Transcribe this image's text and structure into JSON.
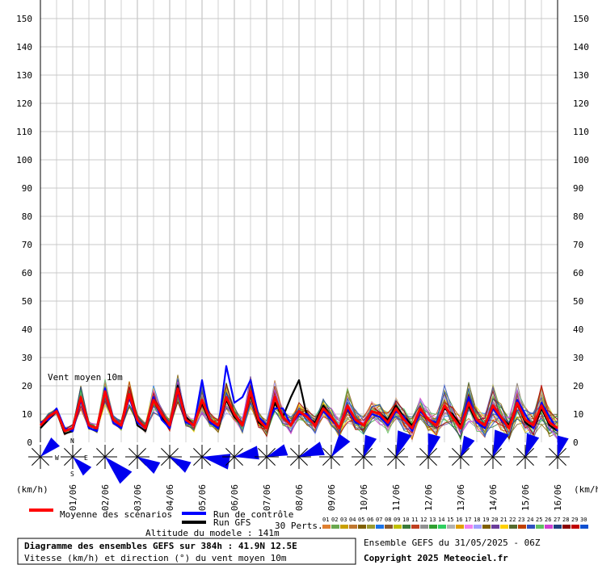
{
  "chart_data": {
    "type": "line",
    "annotation": "Vent moyen 10m",
    "y_unit_left": "(km/h)",
    "y_unit_right": "(km/h)",
    "ylim": [
      0,
      150
    ],
    "yticks": [
      0,
      10,
      20,
      30,
      40,
      50,
      60,
      70,
      80,
      90,
      100,
      110,
      120,
      130,
      140,
      150
    ],
    "date_labels": [
      "01/06",
      "02/06",
      "03/06",
      "04/06",
      "05/06",
      "06/06",
      "07/06",
      "08/06",
      "09/06",
      "10/06",
      "11/06",
      "12/06",
      "13/06",
      "14/06",
      "15/06",
      "16/06"
    ],
    "x_hours": [
      0,
      6,
      12,
      18,
      24,
      30,
      36,
      42,
      48,
      54,
      60,
      66,
      72,
      78,
      84,
      90,
      96,
      102,
      108,
      114,
      120,
      126,
      132,
      138,
      144,
      150,
      156,
      162,
      168,
      174,
      180,
      186,
      192,
      198,
      204,
      210,
      216,
      222,
      228,
      234,
      240,
      246,
      252,
      258,
      264,
      270,
      276,
      282,
      288,
      294,
      300,
      306,
      312,
      318,
      324,
      330,
      336,
      342,
      348,
      354,
      360,
      366,
      372,
      378,
      384
    ],
    "x_range_hours": [
      0,
      384
    ],
    "series": [
      {
        "name": "Moyenne des scénarios",
        "color": "#ff0000",
        "values": [
          6,
          9,
          11,
          4,
          5,
          16,
          6,
          5,
          18,
          8,
          6,
          17,
          8,
          5,
          15,
          10,
          6,
          19,
          8,
          6,
          15,
          8,
          6,
          16,
          10,
          6,
          18,
          8,
          5,
          16,
          9,
          6,
          11,
          9,
          6,
          12,
          9,
          5,
          13,
          8,
          6,
          11,
          10,
          7,
          12,
          8,
          5,
          12,
          8,
          6,
          13,
          9,
          5,
          14,
          8,
          6,
          13,
          9,
          5,
          14,
          8,
          6,
          13,
          7,
          5
        ]
      },
      {
        "name": "Run de contrôle",
        "color": "#0000ff",
        "values": [
          7,
          8,
          12,
          5,
          4,
          15,
          5,
          4,
          19,
          7,
          5,
          16,
          7,
          5,
          16,
          8,
          5,
          18,
          7,
          6,
          22,
          7,
          5,
          27,
          14,
          16,
          22,
          9,
          6,
          12,
          12,
          6,
          10,
          10,
          6,
          11,
          8,
          5,
          12,
          7,
          6,
          10,
          9,
          6,
          11,
          9,
          4,
          11,
          8,
          7,
          13,
          9,
          5,
          16,
          7,
          5,
          12,
          8,
          5,
          15,
          10,
          5,
          14,
          9,
          4
        ]
      },
      {
        "name": "Run GFS",
        "color": "#000000",
        "values": [
          5,
          8,
          11,
          3,
          4,
          16,
          5,
          4,
          18,
          7,
          5,
          17,
          6,
          4,
          15,
          9,
          5,
          20,
          9,
          6,
          14,
          7,
          5,
          15,
          9,
          6,
          17,
          7,
          5,
          14,
          9,
          16,
          22,
          9,
          7,
          13,
          9,
          5,
          12,
          7,
          6,
          11,
          10,
          8,
          13,
          9,
          6,
          11,
          8,
          6,
          12,
          10,
          6,
          13,
          7,
          5,
          13,
          9,
          6,
          14,
          7,
          5,
          12,
          6,
          4
        ]
      }
    ],
    "direction_unit": "°",
    "wind_directions_deg": [
      225,
      315,
      315,
      300,
      300,
      280,
      260,
      250,
      250,
      215,
      200,
      200,
      195,
      205,
      200,
      200,
      195
    ]
  },
  "legend": {
    "mean_label": "Moyenne des scénarios",
    "control_label": "Run de contrôle",
    "gfs_label": "Run GFS",
    "perts_label": "30 Perts.",
    "altitude": "Altitude du modele : 141m",
    "pert_numbers": [
      "01",
      "02",
      "03",
      "04",
      "05",
      "06",
      "07",
      "08",
      "09",
      "10",
      "11",
      "12",
      "13",
      "14",
      "15",
      "16",
      "17",
      "18",
      "19",
      "20",
      "21",
      "22",
      "23",
      "24",
      "25",
      "26",
      "27",
      "28",
      "29",
      "30"
    ],
    "pert_colors": [
      "#e08030",
      "#6aa84f",
      "#c9a000",
      "#c07830",
      "#806000",
      "#9a9a30",
      "#1a73e8",
      "#8b5a2b",
      "#c0c000",
      "#3a7a3a",
      "#c04020",
      "#909090",
      "#30a030",
      "#30d060",
      "#b0b0b0",
      "#e0a000",
      "#f080f0",
      "#a0a0ff",
      "#7f6000",
      "#6a3d9a",
      "#ffd000",
      "#556b2f",
      "#c04000",
      "#3050c0",
      "#60c060",
      "#d040d0",
      "#204080",
      "#8b0000",
      "#c00000",
      "#1050d0"
    ]
  },
  "footer": {
    "title": "Diagramme des ensembles GEFS sur 384h : 41.9N 12.5E",
    "subtitle": "Vitesse (km/h) et direction (°) du vent moyen 10m",
    "run_info": "Ensemble GEFS du 31/05/2025 - 06Z",
    "copyright": "Copyright 2025 Meteociel.fr"
  },
  "compass": {
    "n": "N",
    "s": "S",
    "e": "E",
    "w": "W"
  }
}
